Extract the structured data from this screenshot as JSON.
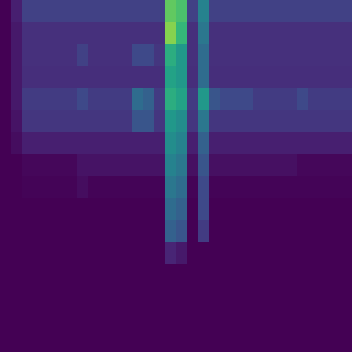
{
  "chart_data": {
    "type": "heatmap",
    "tick_labels": false,
    "color": "viridis",
    "color_range": [
      0,
      1
    ],
    "cells": [
      [
        0,
        0.1,
        0.22,
        0.22,
        0.22,
        0.22,
        0.22,
        0.22,
        0.22,
        0.22,
        0.22,
        0.22,
        0.22,
        0.22,
        0.22,
        0.85,
        0.8,
        0.22,
        0.5,
        0.22,
        0.22,
        0.22,
        0.22,
        0.22,
        0.22,
        0.22,
        0.22,
        0.22,
        0.22,
        0.22,
        0.22,
        0.22
      ],
      [
        0,
        0.08,
        0.16,
        0.16,
        0.16,
        0.16,
        0.16,
        0.16,
        0.16,
        0.16,
        0.16,
        0.16,
        0.16,
        0.16,
        0.16,
        0.9,
        0.75,
        0.16,
        0.45,
        0.16,
        0.16,
        0.16,
        0.16,
        0.16,
        0.16,
        0.16,
        0.16,
        0.16,
        0.16,
        0.16,
        0.16,
        0.16
      ],
      [
        0,
        0.08,
        0.16,
        0.16,
        0.16,
        0.16,
        0.16,
        0.22,
        0.16,
        0.16,
        0.16,
        0.16,
        0.25,
        0.25,
        0.18,
        0.7,
        0.6,
        0.16,
        0.4,
        0.16,
        0.16,
        0.16,
        0.16,
        0.16,
        0.16,
        0.16,
        0.16,
        0.16,
        0.16,
        0.16,
        0.16,
        0.16
      ],
      [
        0,
        0.08,
        0.15,
        0.15,
        0.15,
        0.15,
        0.15,
        0.15,
        0.15,
        0.15,
        0.15,
        0.15,
        0.15,
        0.15,
        0.15,
        0.65,
        0.6,
        0.15,
        0.4,
        0.15,
        0.15,
        0.15,
        0.15,
        0.15,
        0.15,
        0.15,
        0.15,
        0.15,
        0.15,
        0.15,
        0.15,
        0.15
      ],
      [
        0,
        0.08,
        0.2,
        0.2,
        0.2,
        0.2,
        0.2,
        0.25,
        0.2,
        0.2,
        0.2,
        0.2,
        0.4,
        0.35,
        0.2,
        0.7,
        0.65,
        0.2,
        0.6,
        0.3,
        0.25,
        0.25,
        0.25,
        0.2,
        0.2,
        0.2,
        0.2,
        0.25,
        0.2,
        0.2,
        0.2,
        0.2
      ],
      [
        0,
        0.06,
        0.18,
        0.18,
        0.18,
        0.18,
        0.18,
        0.18,
        0.18,
        0.18,
        0.18,
        0.18,
        0.3,
        0.3,
        0.18,
        0.6,
        0.55,
        0.18,
        0.45,
        0.18,
        0.18,
        0.18,
        0.18,
        0.18,
        0.18,
        0.18,
        0.18,
        0.18,
        0.18,
        0.18,
        0.18,
        0.18
      ],
      [
        0,
        0.04,
        0.1,
        0.1,
        0.1,
        0.1,
        0.1,
        0.1,
        0.1,
        0.1,
        0.1,
        0.1,
        0.1,
        0.1,
        0.1,
        0.55,
        0.5,
        0.1,
        0.35,
        0.1,
        0.1,
        0.1,
        0.1,
        0.1,
        0.1,
        0.1,
        0.1,
        0.1,
        0.1,
        0.1,
        0.1,
        0.1
      ],
      [
        0,
        0,
        0.02,
        0.02,
        0.02,
        0.02,
        0.02,
        0.06,
        0.06,
        0.06,
        0.06,
        0.06,
        0.06,
        0.06,
        0.06,
        0.5,
        0.45,
        0.05,
        0.3,
        0.05,
        0.05,
        0.05,
        0.05,
        0.05,
        0.05,
        0.05,
        0.05,
        0.02,
        0.02,
        0.02,
        0.02,
        0.02
      ],
      [
        0,
        0,
        0.01,
        0.01,
        0.01,
        0.01,
        0.01,
        0.04,
        0.01,
        0.01,
        0.01,
        0.01,
        0.01,
        0.01,
        0.01,
        0.45,
        0.4,
        0.01,
        0.25,
        0.01,
        0.01,
        0.01,
        0.01,
        0.01,
        0.01,
        0.01,
        0.01,
        0.01,
        0.01,
        0.01,
        0.01,
        0.01
      ],
      [
        0,
        0,
        0,
        0,
        0,
        0,
        0,
        0,
        0,
        0,
        0,
        0,
        0,
        0,
        0,
        0.4,
        0.35,
        0,
        0.25,
        0,
        0,
        0,
        0,
        0,
        0,
        0,
        0,
        0,
        0,
        0,
        0,
        0
      ],
      [
        0,
        0,
        0,
        0,
        0,
        0,
        0,
        0,
        0,
        0,
        0,
        0,
        0,
        0,
        0,
        0.35,
        0.3,
        0,
        0.2,
        0,
        0,
        0,
        0,
        0,
        0,
        0,
        0,
        0,
        0,
        0,
        0,
        0
      ],
      [
        0,
        0,
        0,
        0,
        0,
        0,
        0,
        0,
        0,
        0,
        0,
        0,
        0,
        0,
        0,
        0.12,
        0.08,
        0,
        0,
        0,
        0,
        0,
        0,
        0,
        0,
        0,
        0,
        0,
        0,
        0,
        0,
        0
      ],
      [
        0,
        0,
        0,
        0,
        0,
        0,
        0,
        0,
        0,
        0,
        0,
        0,
        0,
        0,
        0,
        0,
        0,
        0,
        0,
        0,
        0,
        0,
        0,
        0,
        0,
        0,
        0,
        0,
        0,
        0,
        0,
        0
      ],
      [
        0,
        0,
        0,
        0,
        0,
        0,
        0,
        0,
        0,
        0,
        0,
        0,
        0,
        0,
        0,
        0,
        0,
        0,
        0,
        0,
        0,
        0,
        0,
        0,
        0,
        0,
        0,
        0,
        0,
        0,
        0,
        0
      ],
      [
        0,
        0,
        0,
        0,
        0,
        0,
        0,
        0,
        0,
        0,
        0,
        0,
        0,
        0,
        0,
        0,
        0,
        0,
        0,
        0,
        0,
        0,
        0,
        0,
        0,
        0,
        0,
        0,
        0,
        0,
        0,
        0
      ],
      [
        0,
        0,
        0,
        0,
        0,
        0,
        0,
        0,
        0,
        0,
        0,
        0,
        0,
        0,
        0,
        0,
        0,
        0,
        0,
        0,
        0,
        0,
        0,
        0,
        0,
        0,
        0,
        0,
        0,
        0,
        0,
        0
      ]
    ]
  }
}
